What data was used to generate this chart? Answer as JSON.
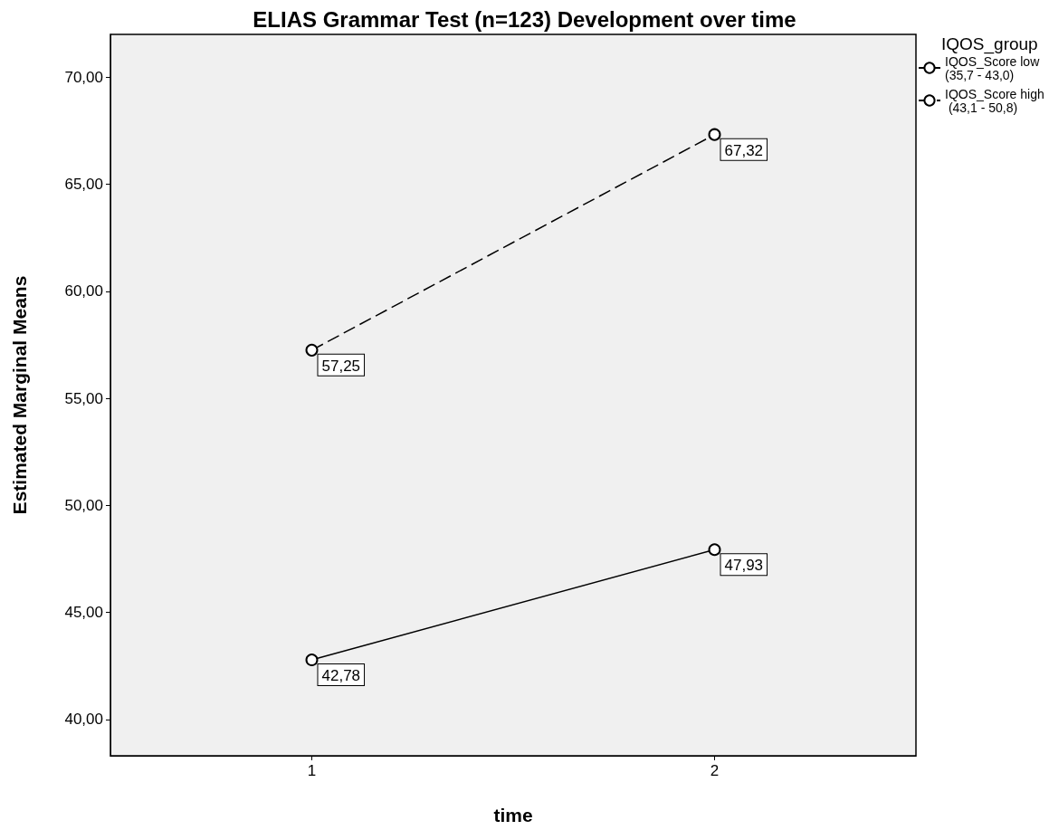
{
  "chart_data": {
    "type": "line",
    "title": "ELIAS Grammar Test (n=123) Development over time",
    "xlabel": "time",
    "ylabel": "Estimated Marginal Means",
    "legend_title": "IQOS_group",
    "categories": [
      "1",
      "2"
    ],
    "series": [
      {
        "name": "IQOS_Score low (35,7 - 43,0)",
        "color": "#000000",
        "line_style": "solid",
        "values": [
          42.78,
          47.93
        ],
        "value_labels": [
          "42,78",
          "47,93"
        ]
      },
      {
        "name": "IQOS_Score high (43,1 - 50,8)",
        "color": "#000000",
        "line_style": "dashed",
        "values": [
          57.25,
          67.32
        ],
        "value_labels": [
          "57,25",
          "67,32"
        ]
      }
    ],
    "ylim": [
      38.3,
      72.0
    ],
    "yticks": [
      {
        "value": 40,
        "label": "40,00"
      },
      {
        "value": 45,
        "label": "45,00"
      },
      {
        "value": 50,
        "label": "50,00"
      },
      {
        "value": 55,
        "label": "55,00"
      },
      {
        "value": 60,
        "label": "60,00"
      },
      {
        "value": 65,
        "label": "65,00"
      },
      {
        "value": 70,
        "label": "70,00"
      }
    ],
    "grid": false,
    "legend": "top right",
    "marker": "circle"
  }
}
